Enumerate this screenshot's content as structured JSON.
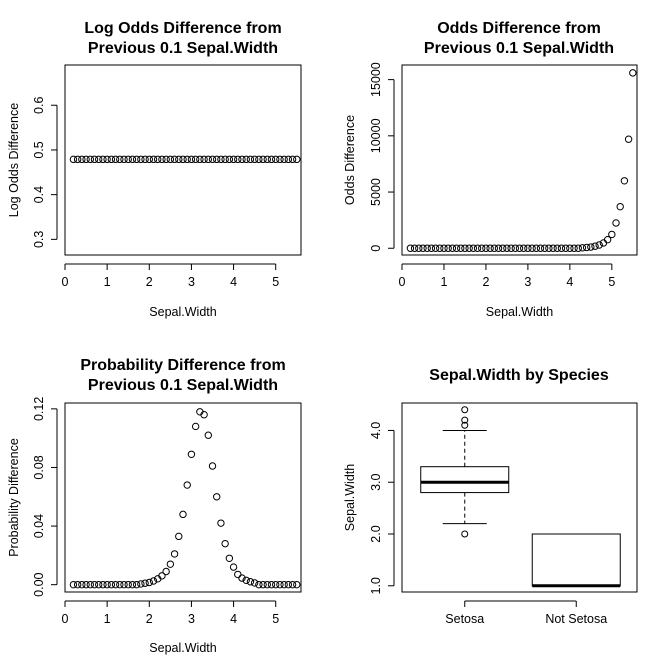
{
  "chart_data": [
    {
      "id": "log_odds",
      "type": "scatter",
      "title_lines": [
        "Log Odds Difference from",
        "Previous 0.1 Sepal.Width"
      ],
      "xlabel": "Sepal.Width",
      "ylabel": "Log Odds Difference",
      "xlim": [
        0,
        5.6
      ],
      "ylim": [
        0.265,
        0.69
      ],
      "xticks": [
        0,
        1,
        2,
        3,
        4,
        5
      ],
      "yticks": [
        0.3,
        0.4,
        0.5,
        0.6
      ],
      "ytick_labels": [
        "0.3",
        "0.4",
        "0.5",
        "0.6"
      ],
      "x_start": 0.2,
      "x_end": 5.5,
      "x_step": 0.1,
      "constant_y": 0.479
    },
    {
      "id": "odds",
      "type": "scatter",
      "title_lines": [
        "Odds Difference from",
        "Previous 0.1 Sepal.Width"
      ],
      "xlabel": "Sepal.Width",
      "ylabel": "Odds Difference",
      "xlim": [
        0,
        5.6
      ],
      "ylim": [
        -600,
        16300
      ],
      "xticks": [
        0,
        1,
        2,
        3,
        4,
        5
      ],
      "yticks": [
        0,
        5000,
        10000,
        15000
      ],
      "ytick_labels": [
        "0",
        "5000",
        "10000",
        "15000"
      ],
      "points": [
        [
          4.3,
          40
        ],
        [
          4.4,
          70
        ],
        [
          4.5,
          110
        ],
        [
          4.6,
          180
        ],
        [
          4.7,
          290
        ],
        [
          4.8,
          470
        ],
        [
          4.9,
          760
        ],
        [
          5.0,
          1230
        ],
        [
          5.1,
          2250
        ],
        [
          5.2,
          3700
        ],
        [
          5.3,
          6000
        ],
        [
          5.4,
          9700
        ],
        [
          5.5,
          15600
        ]
      ],
      "x_start": 0.2,
      "x_end": 5.5,
      "x_step": 0.1
    },
    {
      "id": "prob",
      "type": "scatter",
      "title_lines": [
        "Probability Difference from",
        "Previous 0.1 Sepal.Width"
      ],
      "xlabel": "Sepal.Width",
      "ylabel": "Probability Difference",
      "xlim": [
        0,
        5.6
      ],
      "ylim": [
        -0.005,
        0.124
      ],
      "xticks": [
        0,
        1,
        2,
        3,
        4,
        5
      ],
      "yticks": [
        0.0,
        0.04,
        0.08,
        0.12
      ],
      "ytick_labels": [
        "0.00",
        "0.04",
        "0.08",
        "0.12"
      ],
      "points": [
        [
          1.8,
          0.0005
        ],
        [
          1.9,
          0.001
        ],
        [
          2.0,
          0.0015
        ],
        [
          2.1,
          0.0025
        ],
        [
          2.2,
          0.004
        ],
        [
          2.3,
          0.006
        ],
        [
          2.4,
          0.009
        ],
        [
          2.5,
          0.014
        ],
        [
          2.6,
          0.021
        ],
        [
          2.7,
          0.033
        ],
        [
          2.8,
          0.048
        ],
        [
          2.9,
          0.068
        ],
        [
          3.0,
          0.089
        ],
        [
          3.1,
          0.108
        ],
        [
          3.2,
          0.118
        ],
        [
          3.3,
          0.116
        ],
        [
          3.4,
          0.102
        ],
        [
          3.5,
          0.081
        ],
        [
          3.6,
          0.06
        ],
        [
          3.7,
          0.042
        ],
        [
          3.8,
          0.028
        ],
        [
          3.9,
          0.018
        ],
        [
          4.0,
          0.012
        ],
        [
          4.1,
          0.007
        ],
        [
          4.2,
          0.0045
        ],
        [
          4.3,
          0.003
        ],
        [
          4.4,
          0.002
        ],
        [
          4.5,
          0.0012
        ]
      ],
      "x_start": 0.2,
      "x_end": 5.5,
      "x_step": 0.1
    },
    {
      "id": "boxplot",
      "type": "boxplot",
      "title_lines": [
        "Sepal.Width by Species"
      ],
      "xlabel": "",
      "ylabel": "Sepal.Width",
      "ylim": [
        0.88,
        4.53
      ],
      "yticks": [
        1.0,
        2.0,
        3.0,
        4.0
      ],
      "ytick_labels": [
        "1.0",
        "2.0",
        "3.0",
        "4.0"
      ],
      "categories": [
        "Setosa",
        "Not Setosa"
      ],
      "boxes": [
        {
          "name": "Setosa",
          "min": 2.2,
          "q1": 2.8,
          "median": 3.0,
          "q3": 3.3,
          "max": 4.0,
          "outliers": [
            4.1,
            4.2,
            4.4,
            2.0
          ]
        },
        {
          "name": "Not Setosa",
          "min": 1.0,
          "q1": 1.0,
          "median": 1.0,
          "q3": 2.0,
          "max": 2.0,
          "outliers": []
        }
      ]
    }
  ]
}
